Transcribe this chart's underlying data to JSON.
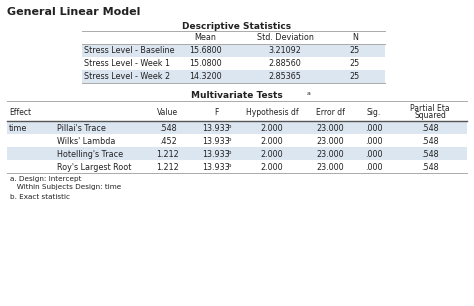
{
  "title": "General Linear Model",
  "desc_title": "Descriptive Statistics",
  "desc_rows": [
    [
      "Stress Level - Baseline",
      "15.6800",
      "3.21092",
      "25"
    ],
    [
      "Stress Level - Week 1",
      "15.0800",
      "2.88560",
      "25"
    ],
    [
      "Stress Level - Week 2",
      "14.3200",
      "2.85365",
      "25"
    ]
  ],
  "multi_title": "Multivariate Tests",
  "multi_title_sup": "a",
  "multi_rows": [
    [
      "time",
      "Pillai's Trace",
      ".548",
      "13.933",
      "b",
      "2.000",
      "23.000",
      ".000",
      ".548"
    ],
    [
      "",
      "Wilks' Lambda",
      ".452",
      "13.933",
      "b",
      "2.000",
      "23.000",
      ".000",
      ".548"
    ],
    [
      "",
      "Hotelling's Trace",
      "1.212",
      "13.933",
      "b",
      "2.000",
      "23.000",
      ".000",
      ".548"
    ],
    [
      "",
      "Roy's Largest Root",
      "1.212",
      "13.933",
      "b",
      "2.000",
      "23.000",
      ".000",
      ".548"
    ]
  ],
  "footnote_a1": "a. Design: Intercept",
  "footnote_a2": "   Within Subjects Design: time",
  "footnote_b": "b. Exact statistic",
  "bg_color": "#ffffff",
  "shade_color": "#dce6f1",
  "line_color": "#aaaaaa",
  "bold_line_color": "#555555"
}
